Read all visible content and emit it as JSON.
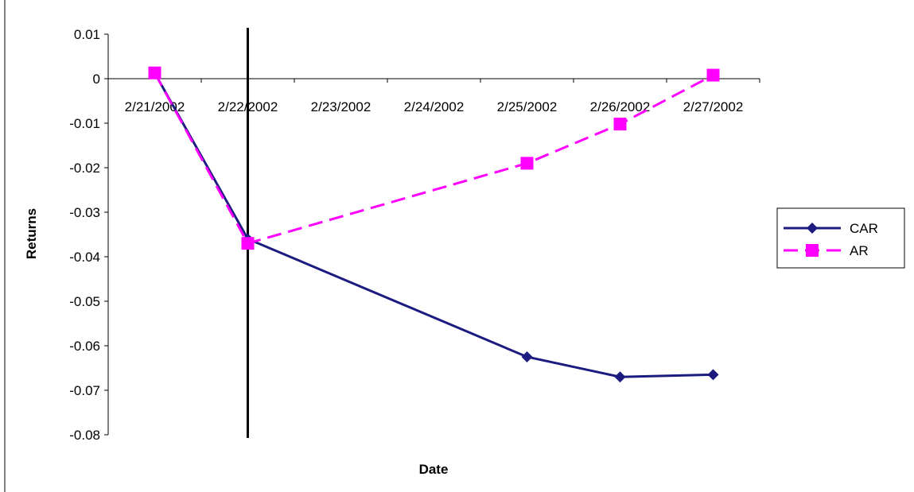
{
  "chart_data": {
    "type": "line",
    "title": "",
    "xlabel": "Date",
    "ylabel": "Returns",
    "categories": [
      "2/21/2002",
      "2/22/2002",
      "2/23/2002",
      "2/24/2002",
      "2/25/2002",
      "2/26/2002",
      "2/27/2002"
    ],
    "ylim": [
      -0.08,
      0.01
    ],
    "yticks": [
      "0.01",
      "0",
      "-0.01",
      "-0.02",
      "-0.03",
      "-0.04",
      "-0.05",
      "-0.06",
      "-0.07",
      "-0.08"
    ],
    "event_line_category": "2/22/2002",
    "grid": false,
    "legend_position": "right",
    "series": [
      {
        "name": "CAR",
        "color": "#1c1c80",
        "marker": "diamond",
        "line_style": "solid",
        "x": [
          "2/21/2002",
          "2/22/2002",
          "2/25/2002",
          "2/26/2002",
          "2/27/2002"
        ],
        "values": [
          0.0013,
          -0.036,
          -0.0625,
          -0.067,
          -0.0665
        ]
      },
      {
        "name": "AR",
        "color": "#ff00ff",
        "marker": "square",
        "line_style": "dashed",
        "x": [
          "2/21/2002",
          "2/22/2002",
          "2/25/2002",
          "2/26/2002",
          "2/27/2002"
        ],
        "values": [
          0.0013,
          -0.037,
          -0.019,
          -0.0102,
          0.0008
        ]
      }
    ]
  }
}
